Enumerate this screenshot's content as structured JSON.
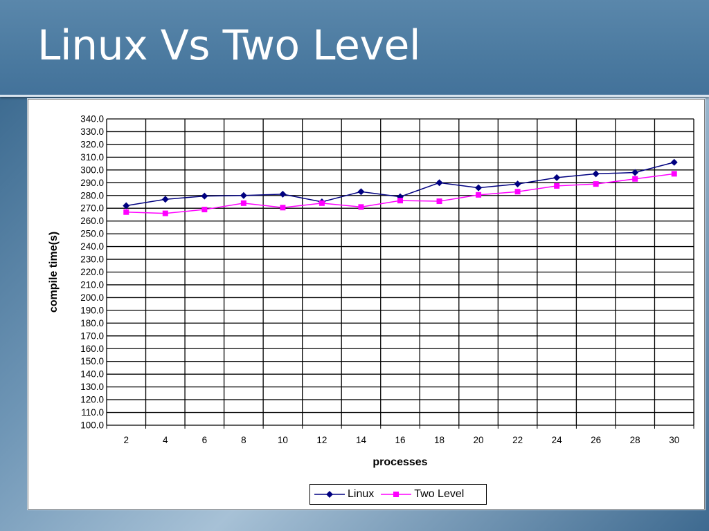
{
  "slide": {
    "title": "Linux Vs Two Level"
  },
  "chart_data": {
    "type": "line",
    "xlabel": "processes",
    "ylabel": "compile time(s)",
    "x": [
      2,
      4,
      6,
      8,
      10,
      12,
      14,
      16,
      18,
      20,
      22,
      24,
      26,
      28,
      30
    ],
    "ylim": [
      100,
      340
    ],
    "ytick_step": 10,
    "yticks": [
      "340.0",
      "330.0",
      "320.0",
      "310.0",
      "300.0",
      "290.0",
      "280.0",
      "270.0",
      "260.0",
      "250.0",
      "240.0",
      "230.0",
      "220.0",
      "210.0",
      "200.0",
      "190.0",
      "180.0",
      "170.0",
      "160.0",
      "150.0",
      "140.0",
      "130.0",
      "120.0",
      "110.0",
      "100.0"
    ],
    "grid": true,
    "legend_position": "bottom",
    "series": [
      {
        "name": "Linux",
        "color": "#000080",
        "marker": "diamond",
        "values": [
          272,
          277,
          279.5,
          280,
          281,
          275,
          283,
          279,
          290,
          286,
          289,
          294,
          297,
          298,
          306
        ]
      },
      {
        "name": "Two Level",
        "color": "#ff00ff",
        "marker": "square",
        "values": [
          267,
          266,
          269,
          274,
          270.5,
          274,
          271,
          276,
          275.5,
          280.5,
          283,
          287.5,
          289,
          293,
          297
        ]
      }
    ]
  }
}
